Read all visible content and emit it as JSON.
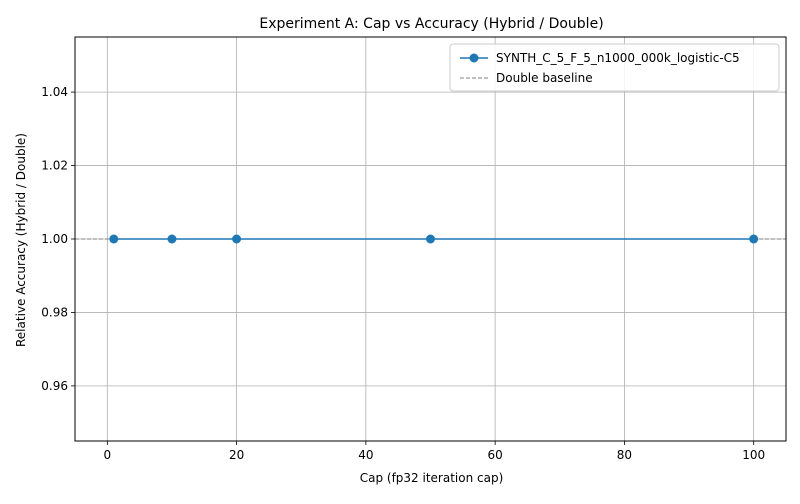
{
  "chart_data": {
    "type": "line",
    "title": "Experiment A: Cap vs Accuracy (Hybrid / Double)",
    "xlabel": "Cap (fp32 iteration cap)",
    "ylabel": "Relative Accuracy (Hybrid / Double)",
    "xlim": [
      -5,
      105
    ],
    "ylim": [
      0.945,
      1.055
    ],
    "x_ticks": [
      0,
      20,
      40,
      60,
      80,
      100
    ],
    "x_tick_labels": [
      "0",
      "20",
      "40",
      "60",
      "80",
      "100"
    ],
    "y_ticks": [
      0.96,
      0.98,
      1.0,
      1.02,
      1.04
    ],
    "y_tick_labels": [
      "0.96",
      "0.98",
      "1.00",
      "1.02",
      "1.04"
    ],
    "grid": true,
    "legend_position": "top-right",
    "series": [
      {
        "name": "SYNTH_C_5_F_5_n1000_000k_logistic-C5",
        "color": "#1f77b4",
        "marker": "circle",
        "x": [
          1,
          10,
          20,
          50,
          100
        ],
        "y": [
          1.0,
          1.0,
          1.0,
          1.0,
          1.0
        ]
      }
    ],
    "reference_lines": [
      {
        "name": "Double baseline",
        "y": 1.0,
        "color": "#808080",
        "style": "dashed"
      }
    ]
  }
}
